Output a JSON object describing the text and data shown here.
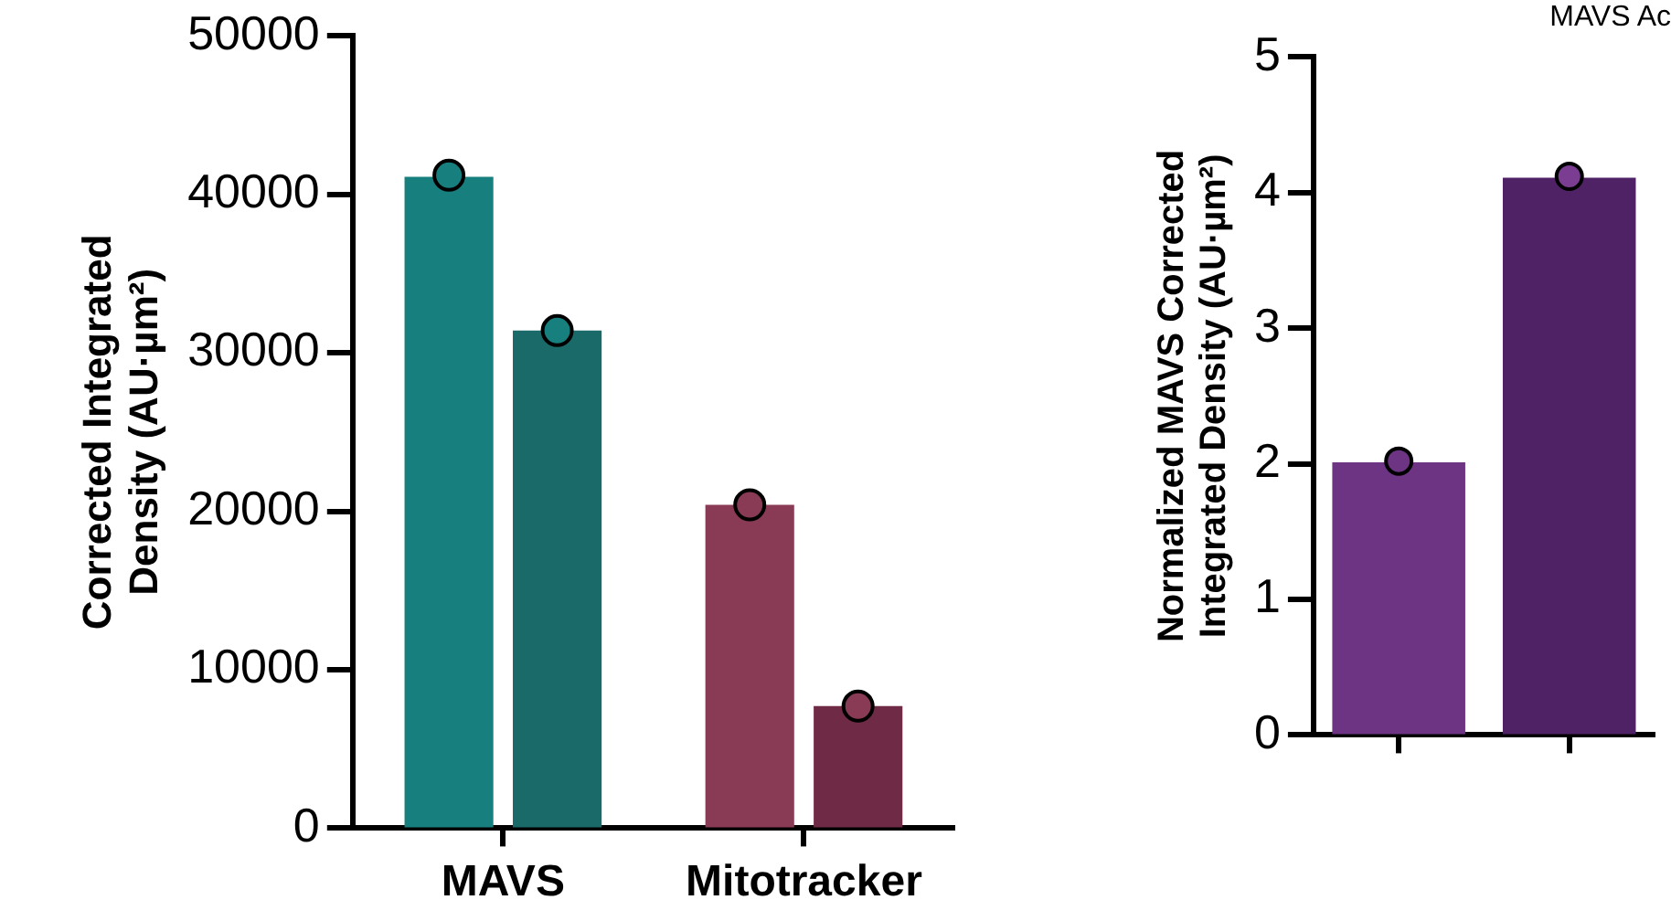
{
  "chart_data": [
    {
      "type": "bar",
      "ylabel": "Corrected Integrated Density (AU·µm²)",
      "categories": [
        "MAVS",
        "Mitotracker"
      ],
      "ylim": [
        0,
        50000
      ],
      "yticks": [
        0,
        10000,
        20000,
        30000,
        40000,
        50000
      ],
      "grid": false,
      "legend": false,
      "marker": "circle",
      "series": [
        {
          "colors": [
            "#17807f",
            "#893b56"
          ],
          "values": [
            41100,
            20400
          ]
        },
        {
          "colors": [
            "#1b6a6a",
            "#6f2b45"
          ],
          "values": [
            31400,
            7700
          ]
        },
        {
          "type": "scatter",
          "colors": [
            "#17807f",
            "#893b56"
          ],
          "values": [
            41200,
            20400
          ]
        },
        {
          "type": "scatter",
          "colors": [
            "#17807f",
            "#893b56"
          ],
          "values": [
            31400,
            7700
          ]
        }
      ]
    },
    {
      "type": "bar",
      "title": "MAVS Ac",
      "ylabel": "Normalized MAVS Corrected Integrated Density (AU·µm²)",
      "categories": [
        null,
        null
      ],
      "ylim": [
        0,
        5
      ],
      "yticks": [
        0,
        1,
        2,
        3,
        4,
        5
      ],
      "grid": false,
      "legend": false,
      "marker": "circle",
      "series": [
        {
          "colors": [
            "#6c3483",
            "#4f2165"
          ],
          "values": [
            2.01,
            4.11
          ]
        },
        {
          "type": "scatter",
          "colors": [
            "#6c3483",
            "#7b3d92"
          ],
          "values": [
            2.02,
            4.12
          ]
        }
      ]
    }
  ]
}
